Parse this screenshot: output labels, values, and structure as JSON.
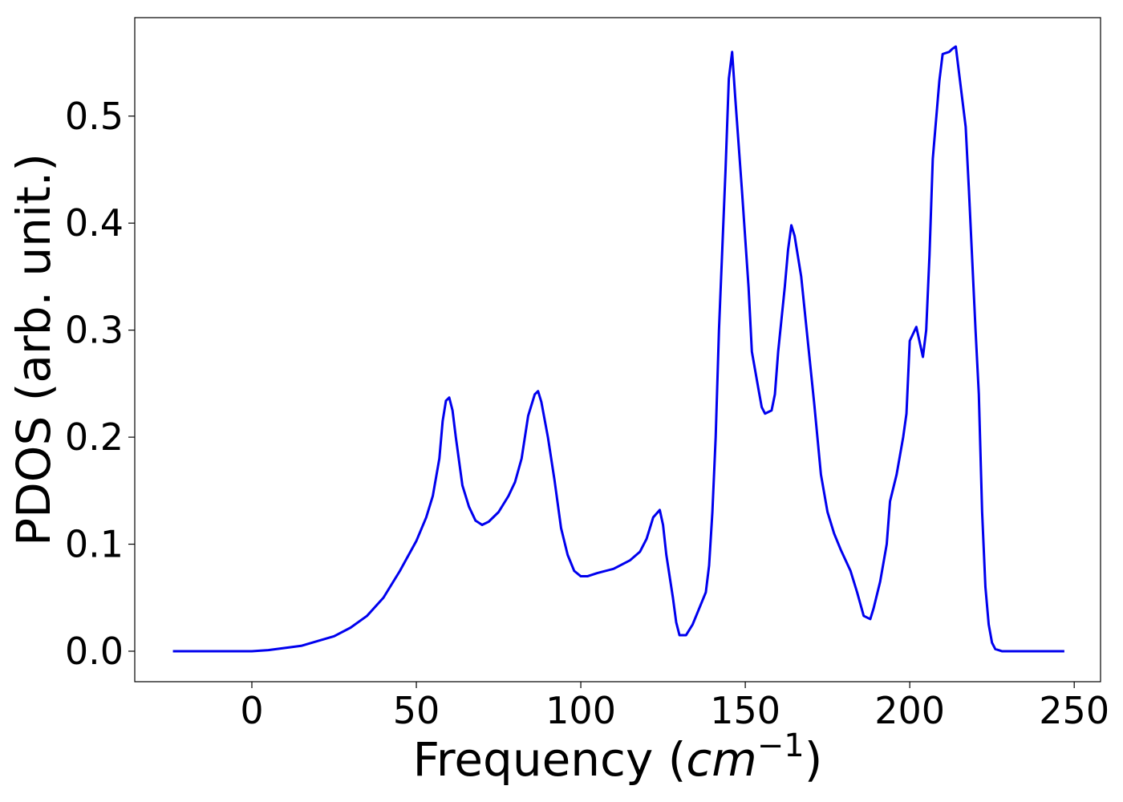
{
  "chart_data": {
    "type": "line",
    "ylabel": "PDOS (arb. unit.)",
    "xlabel": {
      "text": "Frequency (",
      "italic": "cm",
      "superscript": "−1",
      "end": ")"
    },
    "xlim": [
      -35.6,
      258
    ],
    "ylim": [
      -0.0285,
      0.592
    ],
    "xticks": [
      0,
      50,
      100,
      150,
      200,
      250
    ],
    "yticks": [
      {
        "value": 0,
        "label": "0.0"
      },
      0.1,
      0.2,
      0.3,
      0.4,
      0.5
    ],
    "x": [
      -24,
      0,
      5,
      15,
      25,
      30,
      35,
      40,
      45,
      50,
      53,
      55,
      57,
      58,
      59,
      60,
      61,
      62,
      64,
      66,
      68,
      70,
      72,
      75,
      78,
      80,
      82,
      84,
      86,
      87,
      88,
      90,
      92,
      94,
      96,
      98,
      100,
      102,
      105,
      110,
      115,
      118,
      120,
      122,
      124,
      125,
      126,
      128,
      129,
      130,
      132,
      134,
      136,
      138,
      139,
      140,
      141,
      142,
      144,
      145,
      146,
      147,
      149,
      151,
      152,
      154,
      155,
      156,
      158,
      159,
      160,
      162,
      163,
      164,
      165,
      167,
      169,
      171,
      173,
      175,
      177,
      179,
      182,
      184,
      186,
      188,
      189,
      191,
      193,
      194,
      196,
      198,
      199,
      200,
      202,
      204,
      205,
      206,
      207,
      209,
      210,
      212,
      213,
      214,
      215,
      217,
      218,
      220,
      221,
      222,
      223,
      224,
      225,
      226,
      228,
      247
    ],
    "series": [
      {
        "name": "PDOS",
        "color": "#0000ee",
        "values": [
          0,
          0,
          0.001,
          0.005,
          0.014,
          0.022,
          0.033,
          0.05,
          0.075,
          0.103,
          0.125,
          0.145,
          0.18,
          0.215,
          0.234,
          0.237,
          0.225,
          0.2,
          0.155,
          0.135,
          0.122,
          0.118,
          0.121,
          0.13,
          0.145,
          0.158,
          0.18,
          0.22,
          0.24,
          0.243,
          0.233,
          0.2,
          0.16,
          0.115,
          0.09,
          0.075,
          0.07,
          0.07,
          0.073,
          0.077,
          0.085,
          0.093,
          0.105,
          0.125,
          0.132,
          0.118,
          0.09,
          0.05,
          0.027,
          0.015,
          0.015,
          0.025,
          0.04,
          0.055,
          0.08,
          0.13,
          0.2,
          0.3,
          0.45,
          0.535,
          0.56,
          0.515,
          0.43,
          0.34,
          0.28,
          0.245,
          0.228,
          0.222,
          0.225,
          0.24,
          0.28,
          0.34,
          0.375,
          0.398,
          0.388,
          0.35,
          0.29,
          0.23,
          0.165,
          0.13,
          0.11,
          0.095,
          0.075,
          0.055,
          0.033,
          0.03,
          0.04,
          0.065,
          0.1,
          0.14,
          0.165,
          0.2,
          0.222,
          0.29,
          0.303,
          0.275,
          0.3,
          0.37,
          0.46,
          0.533,
          0.558,
          0.56,
          0.563,
          0.565,
          0.54,
          0.49,
          0.43,
          0.3,
          0.24,
          0.13,
          0.06,
          0.025,
          0.008,
          0.002,
          0,
          0
        ]
      }
    ]
  }
}
